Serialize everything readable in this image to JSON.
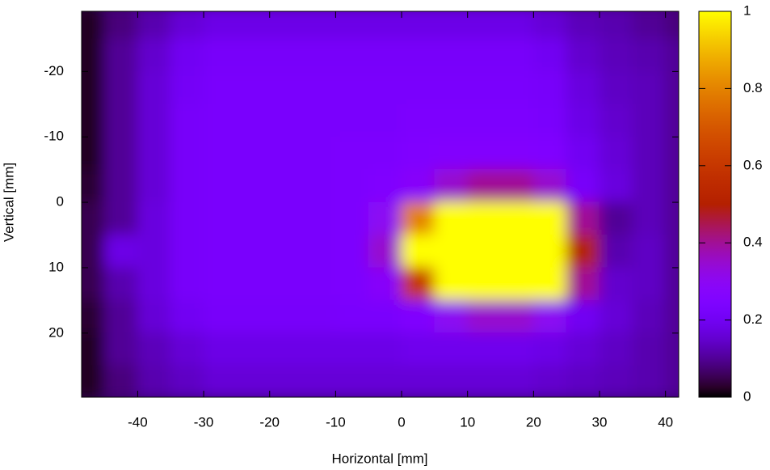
{
  "chart_data": {
    "type": "heatmap",
    "x_label": "Horizontal [mm]",
    "y_label": "Vertical [mm]",
    "xlim": [
      -48.5,
      42
    ],
    "ylim": [
      -29.2,
      29.8
    ],
    "y_inverted": true,
    "xticks": [
      -40,
      -30,
      -20,
      -10,
      0,
      10,
      20,
      30,
      40
    ],
    "yticks": [
      -20,
      -10,
      0,
      10,
      20
    ],
    "colormap": "gnuplot",
    "clim": [
      0,
      1
    ],
    "cticks": [
      0,
      0.2,
      0.4,
      0.6,
      0.8,
      1
    ],
    "x": [
      -47.5,
      -42.5,
      -37.5,
      -32.5,
      -27.5,
      -22.5,
      -17.5,
      -12.5,
      -7.5,
      -2.5,
      2.5,
      7.5,
      12.5,
      17.5,
      22.5,
      27.5,
      32.5,
      37.5,
      42.5
    ],
    "y": [
      -27.5,
      -22.5,
      -17.5,
      -12.5,
      -7.5,
      -2.5,
      2.5,
      7.5,
      12.5,
      17.5,
      22.5,
      27.5
    ],
    "z": [
      [
        0.02,
        0.08,
        0.12,
        0.16,
        0.18,
        0.18,
        0.18,
        0.18,
        0.18,
        0.18,
        0.18,
        0.18,
        0.18,
        0.18,
        0.16,
        0.13,
        0.12,
        0.1,
        0.08
      ],
      [
        0.02,
        0.1,
        0.15,
        0.2,
        0.22,
        0.22,
        0.22,
        0.22,
        0.22,
        0.22,
        0.22,
        0.22,
        0.22,
        0.22,
        0.2,
        0.15,
        0.13,
        0.12,
        0.1
      ],
      [
        0.02,
        0.1,
        0.16,
        0.21,
        0.23,
        0.23,
        0.23,
        0.23,
        0.23,
        0.23,
        0.23,
        0.23,
        0.23,
        0.23,
        0.22,
        0.17,
        0.14,
        0.13,
        0.1
      ],
      [
        0.02,
        0.1,
        0.16,
        0.22,
        0.23,
        0.23,
        0.23,
        0.23,
        0.23,
        0.23,
        0.24,
        0.24,
        0.24,
        0.24,
        0.23,
        0.18,
        0.15,
        0.13,
        0.1
      ],
      [
        0.02,
        0.1,
        0.16,
        0.22,
        0.23,
        0.23,
        0.23,
        0.23,
        0.24,
        0.24,
        0.25,
        0.26,
        0.26,
        0.26,
        0.25,
        0.2,
        0.16,
        0.13,
        0.1
      ],
      [
        0.03,
        0.1,
        0.16,
        0.22,
        0.23,
        0.23,
        0.23,
        0.23,
        0.24,
        0.25,
        0.28,
        0.35,
        0.4,
        0.4,
        0.35,
        0.22,
        0.17,
        0.13,
        0.1
      ],
      [
        0.05,
        0.1,
        0.17,
        0.22,
        0.23,
        0.23,
        0.23,
        0.23,
        0.24,
        0.3,
        0.8,
        1,
        1,
        1,
        1,
        0.4,
        0.1,
        0.13,
        0.1
      ],
      [
        0.05,
        0.18,
        0.17,
        0.22,
        0.23,
        0.23,
        0.23,
        0.23,
        0.24,
        0.35,
        1,
        1,
        1,
        1,
        1,
        0.5,
        0.12,
        0.14,
        0.1
      ],
      [
        0.05,
        0.12,
        0.17,
        0.22,
        0.23,
        0.23,
        0.23,
        0.23,
        0.24,
        0.28,
        0.6,
        1,
        1,
        1,
        1,
        0.4,
        0.15,
        0.14,
        0.1
      ],
      [
        0.03,
        0.1,
        0.16,
        0.2,
        0.22,
        0.22,
        0.22,
        0.22,
        0.23,
        0.23,
        0.25,
        0.3,
        0.35,
        0.35,
        0.3,
        0.2,
        0.16,
        0.13,
        0.1
      ],
      [
        0.02,
        0.1,
        0.13,
        0.16,
        0.18,
        0.18,
        0.18,
        0.18,
        0.18,
        0.18,
        0.19,
        0.19,
        0.19,
        0.19,
        0.18,
        0.16,
        0.14,
        0.12,
        0.1
      ],
      [
        0.02,
        0.08,
        0.12,
        0.14,
        0.16,
        0.16,
        0.16,
        0.16,
        0.16,
        0.16,
        0.16,
        0.16,
        0.16,
        0.16,
        0.15,
        0.14,
        0.13,
        0.12,
        0.1
      ]
    ]
  }
}
